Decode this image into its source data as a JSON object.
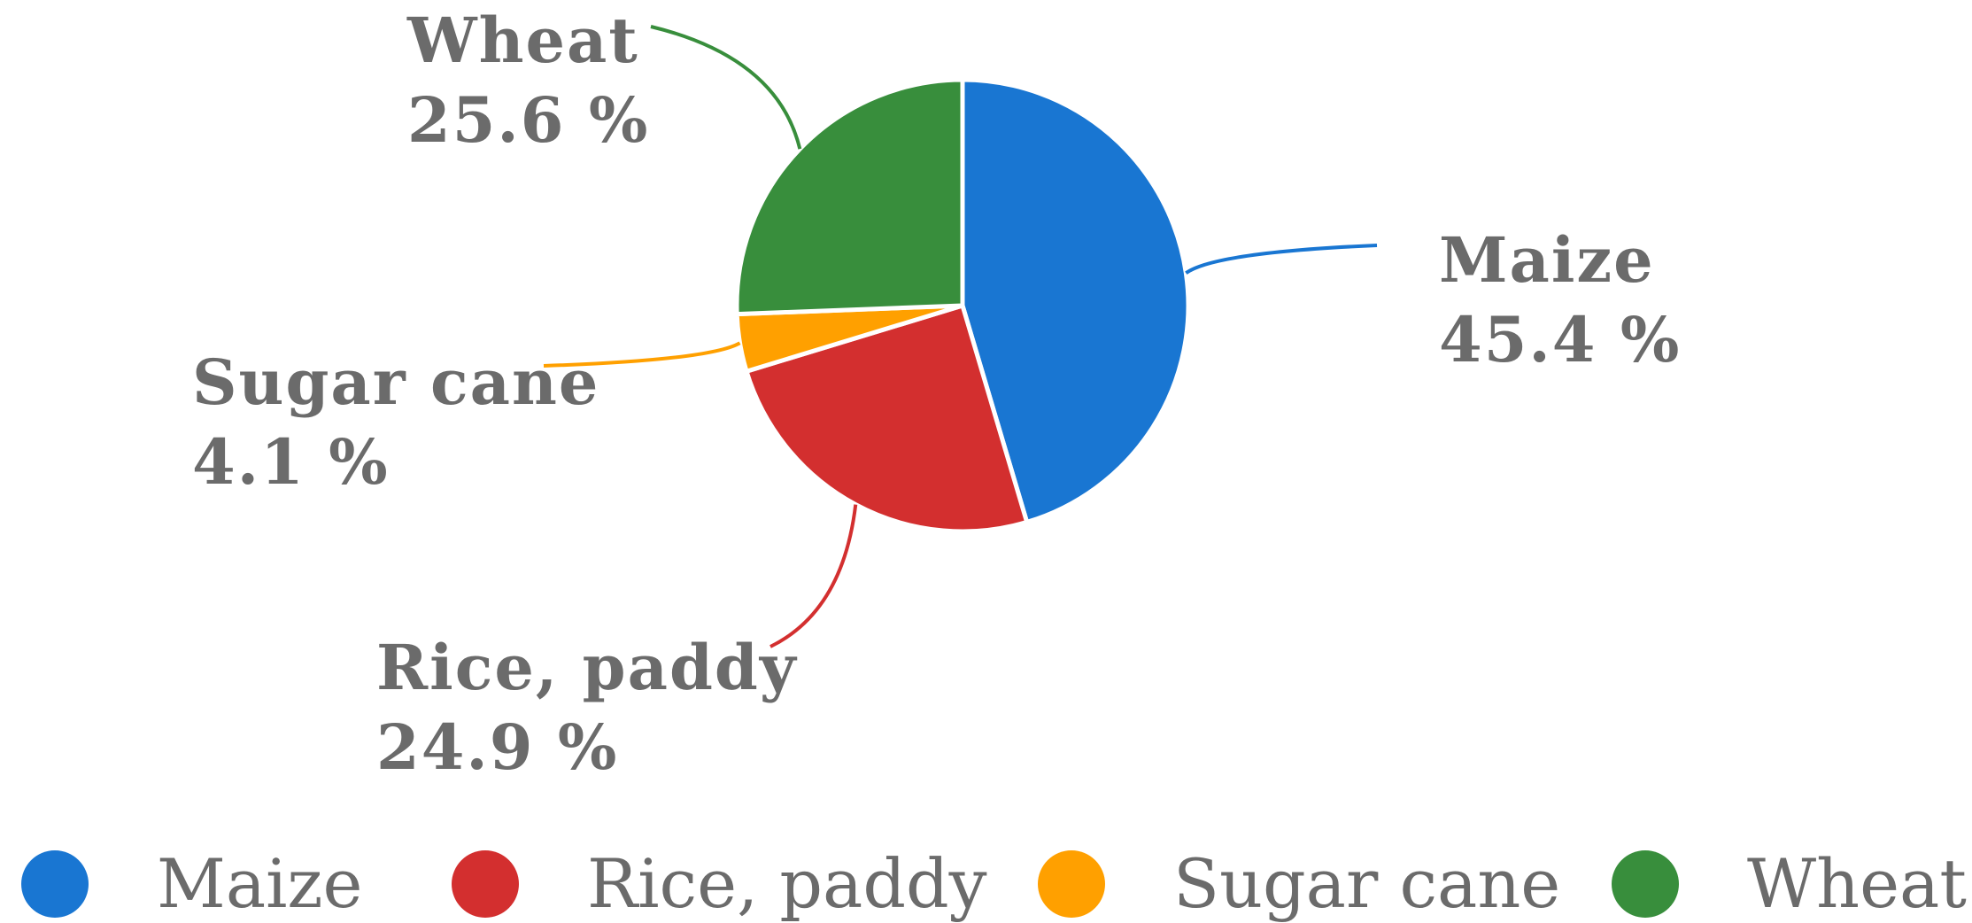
{
  "chart_data": {
    "type": "pie",
    "categories": [
      "Maize",
      "Rice, paddy",
      "Sugar cane",
      "Wheat"
    ],
    "values": [
      45.4,
      24.9,
      4.1,
      25.6
    ],
    "value_labels": [
      "45.4 %",
      "24.9 %",
      "4.1 %",
      "25.6 %"
    ],
    "colors": [
      "#1976d2",
      "#d32f2f",
      "#ffa000",
      "#388e3c"
    ],
    "start_angle_deg": 0,
    "direction": "clockwise",
    "legend": {
      "position": "bottom",
      "entries": [
        "Maize",
        "Rice, paddy",
        "Sugar cane",
        "Wheat"
      ]
    },
    "label_color": "#6b6b6b"
  }
}
